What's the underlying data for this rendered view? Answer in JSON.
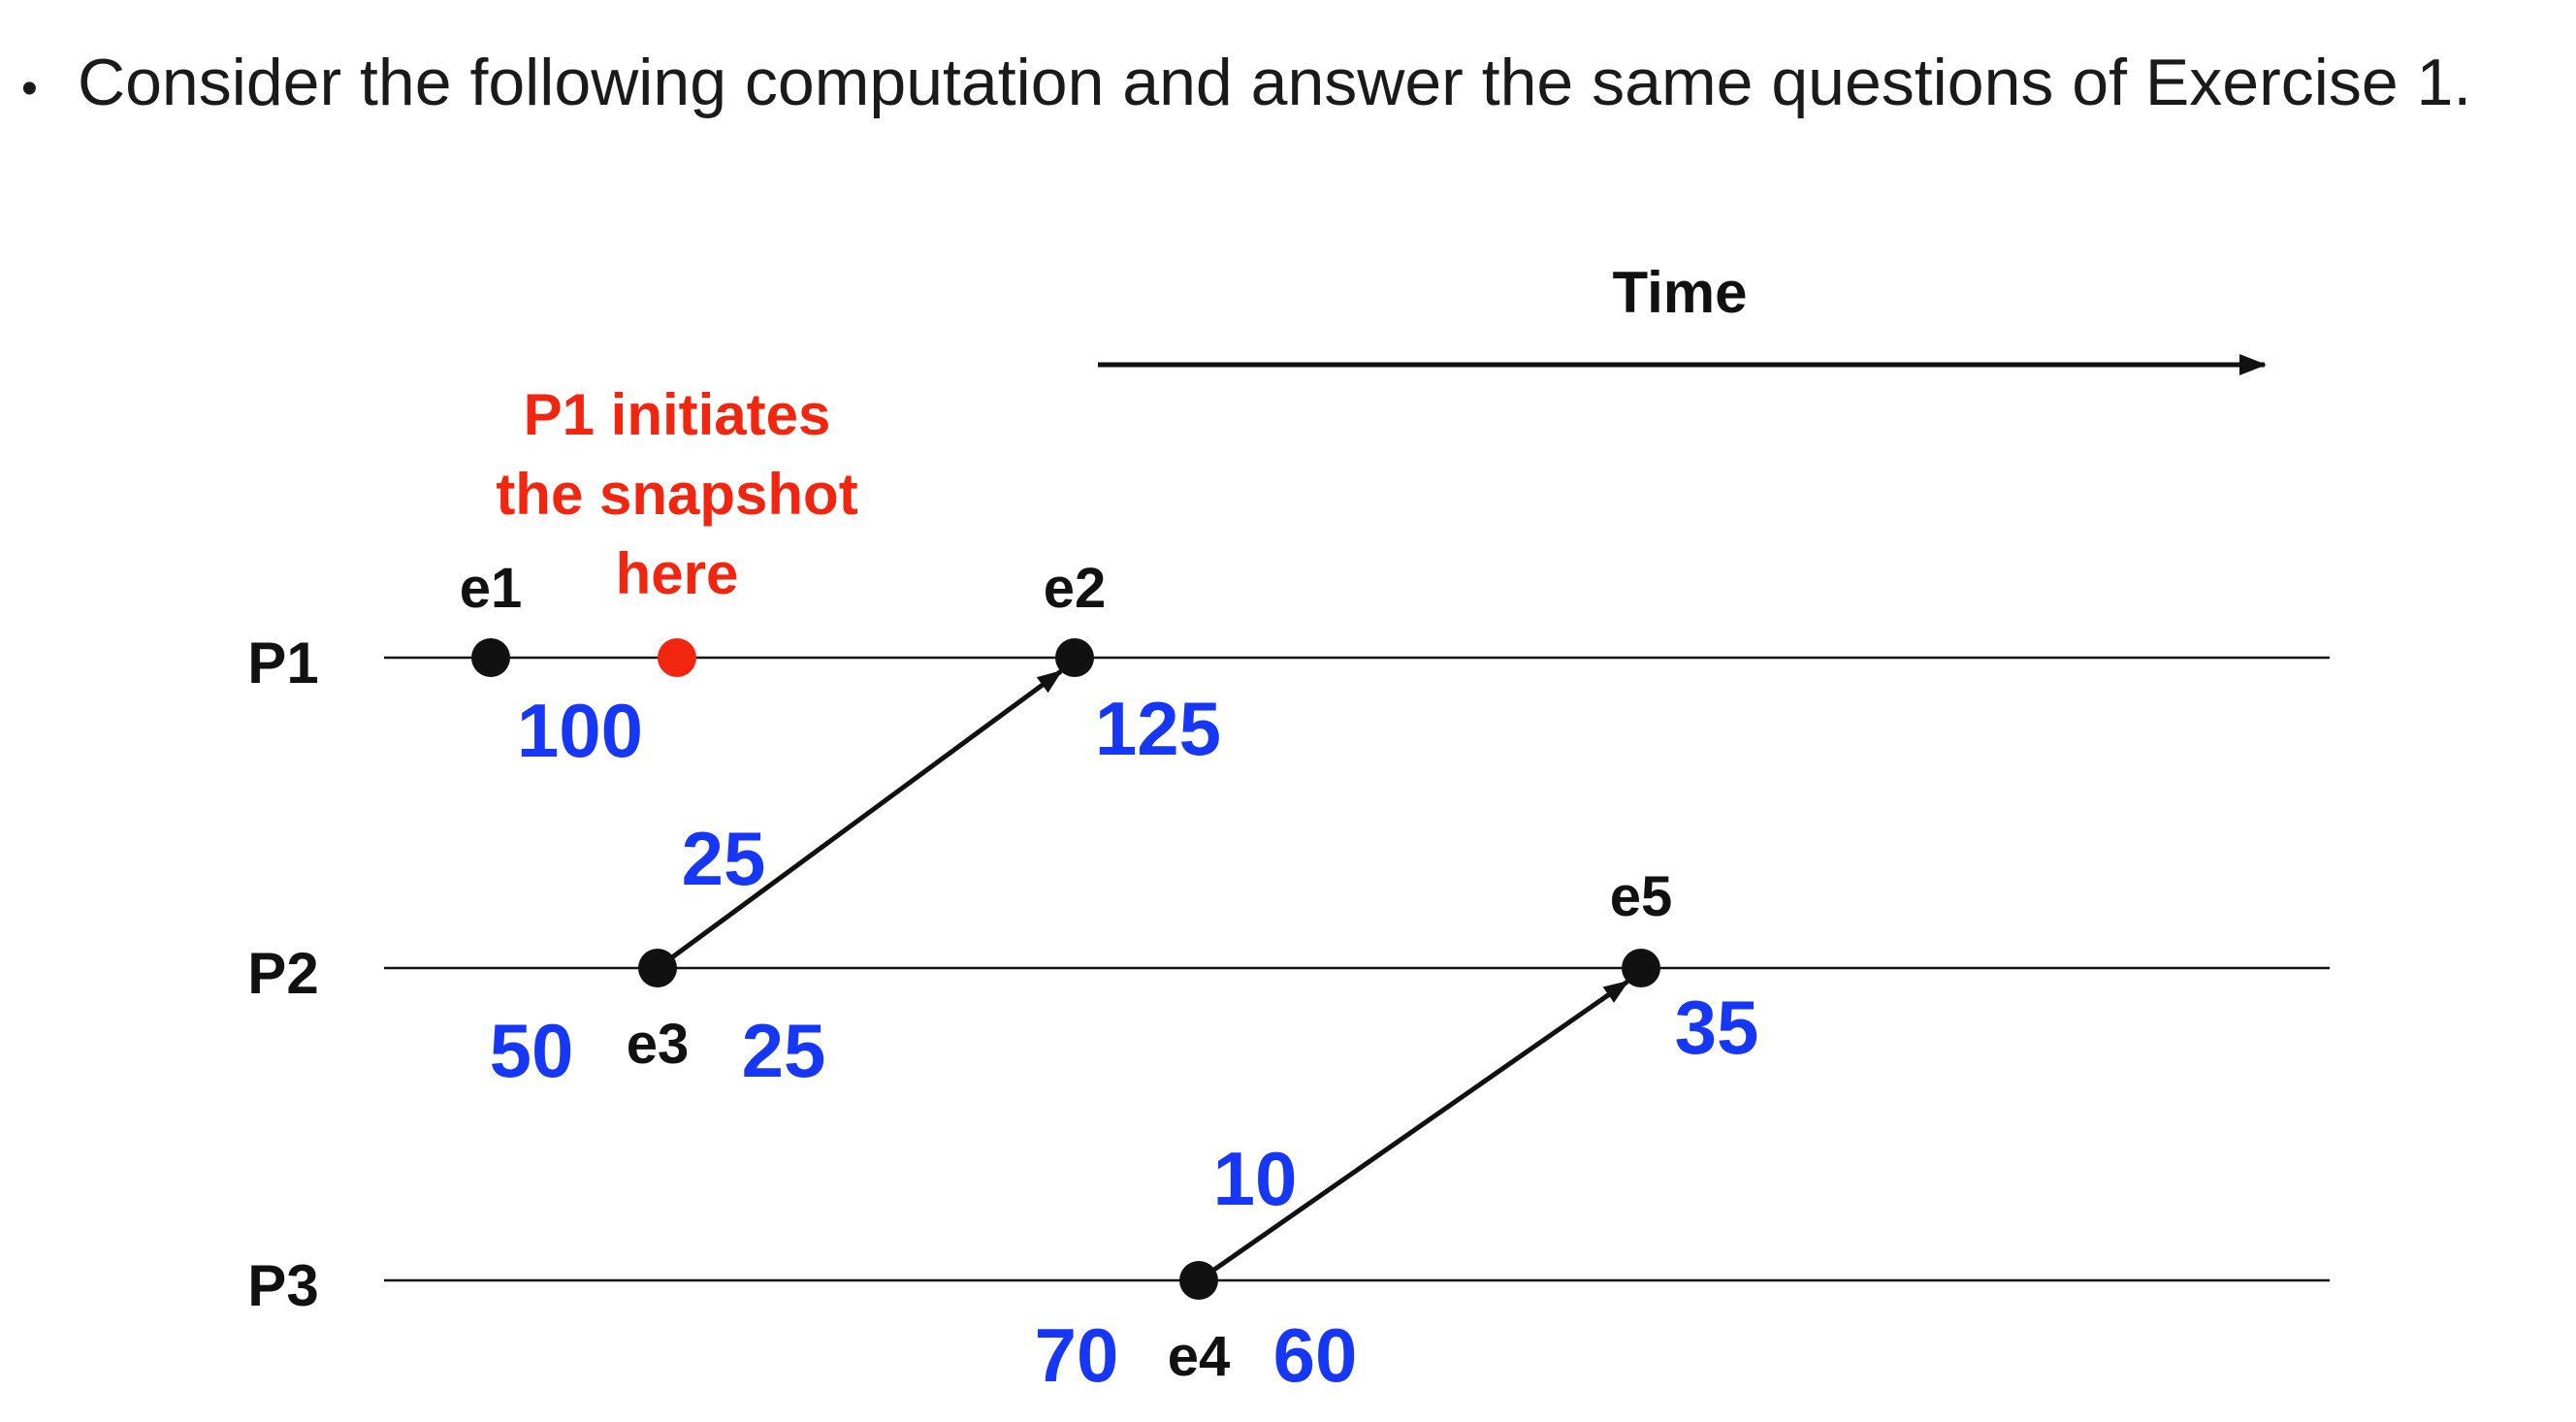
{
  "prompt": {
    "bullet": "•",
    "text": "Consider the following computation and answer the same questions of Exercise 1."
  },
  "time_axis": {
    "label": "Time"
  },
  "processes": [
    {
      "label": "P1"
    },
    {
      "label": "P2"
    },
    {
      "label": "P3"
    }
  ],
  "events": [
    {
      "label": "e1"
    },
    {
      "label": "e2"
    },
    {
      "label": "e3"
    },
    {
      "label": "e4"
    },
    {
      "label": "e5"
    }
  ],
  "snapshot_marker": {
    "annotation_lines": [
      "P1 initiates",
      "the snapshot",
      "here"
    ],
    "color": "#f2250f"
  },
  "values": {
    "p1_before": "100",
    "p1_after_e2": "125",
    "p2_before": "50",
    "p2_after_e3": "25",
    "p2_after_e5": "35",
    "p3_before": "70",
    "p3_after_e4": "60"
  },
  "messages": [
    {
      "from": "e3",
      "to": "e2",
      "amount": "25"
    },
    {
      "from": "e4",
      "to": "e5",
      "amount": "10"
    }
  ],
  "colors": {
    "value_blue": "#1637f5",
    "annotation_red": "#f2250f",
    "line_black": "#111111"
  }
}
